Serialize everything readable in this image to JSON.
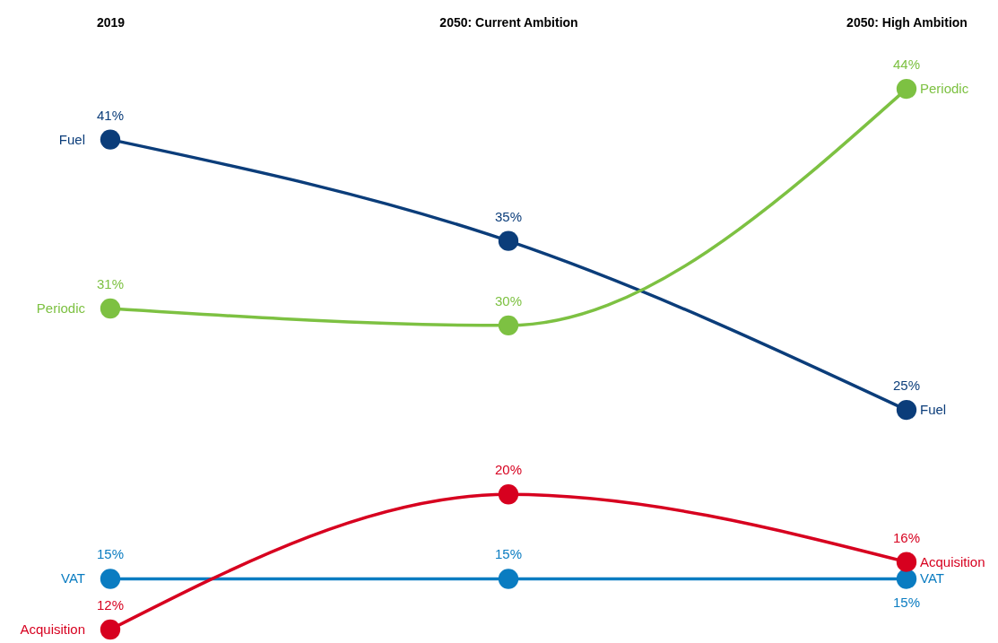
{
  "chart_data": {
    "type": "line",
    "categories": [
      "2019",
      "2050: Current Ambition",
      "2050: High Ambition"
    ],
    "series": [
      {
        "name": "Fuel",
        "color": "#0b3d7a",
        "values": [
          41,
          35,
          25
        ],
        "value_labels": [
          "41%",
          "35%",
          "25%"
        ]
      },
      {
        "name": "Periodic",
        "color": "#7dc142",
        "values": [
          31,
          30,
          44
        ],
        "value_labels": [
          "31%",
          "30%",
          "44%"
        ]
      },
      {
        "name": "VAT",
        "color": "#0a7cc1",
        "values": [
          15,
          15,
          15
        ],
        "value_labels": [
          "15%",
          "15%",
          "15%"
        ]
      },
      {
        "name": "Acquisition",
        "color": "#d7001f",
        "values": [
          12,
          20,
          16
        ],
        "value_labels": [
          "12%",
          "20%",
          "16%"
        ]
      }
    ],
    "marker": "circle",
    "line_style": "solid",
    "grid": false
  }
}
